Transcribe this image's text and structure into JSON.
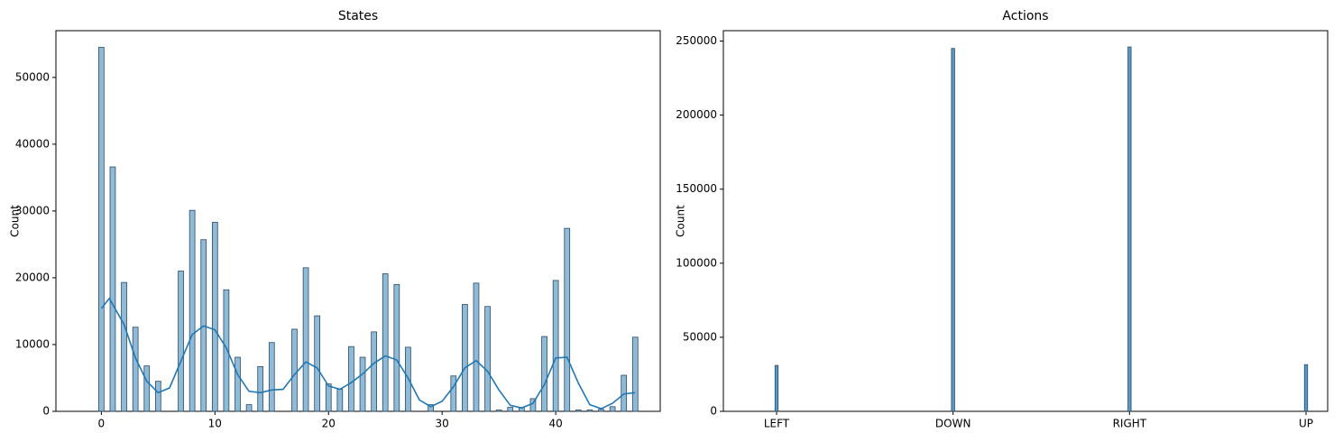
{
  "chart_data": [
    {
      "type": "bar",
      "title": "States",
      "y_label": "Count",
      "color": "#1f77b4",
      "x": [
        0,
        1,
        2,
        3,
        4,
        5,
        7,
        8,
        9,
        10,
        11,
        12,
        13,
        14,
        15,
        17,
        18,
        19,
        20,
        21,
        22,
        23,
        24,
        25,
        26,
        27,
        29,
        31,
        32,
        33,
        34,
        35,
        36,
        37,
        38,
        39,
        40,
        41,
        42,
        43,
        44,
        45,
        46,
        47
      ],
      "values": [
        54500,
        36600,
        19300,
        12600,
        6800,
        4500,
        21000,
        30100,
        25700,
        28300,
        18200,
        8100,
        1000,
        6700,
        10300,
        12300,
        21500,
        14300,
        4100,
        3300,
        9700,
        8100,
        11900,
        20600,
        19000,
        9600,
        1000,
        5300,
        16000,
        19200,
        15700,
        200,
        600,
        600,
        1900,
        11200,
        19600,
        27400,
        200,
        200,
        300,
        700,
        5400,
        11100
      ],
      "line": {
        "color": "#1f77b4",
        "x": [
          0,
          0.7,
          2,
          3,
          4,
          5,
          6,
          7,
          8,
          9,
          10,
          11,
          12,
          13,
          14,
          15,
          16,
          17,
          18,
          19,
          20,
          21,
          22,
          23,
          24,
          25,
          26,
          27,
          28,
          29,
          30,
          31,
          32,
          33,
          34,
          35,
          36,
          37,
          38,
          39,
          40,
          41,
          42,
          43,
          44,
          45,
          46,
          47
        ],
        "values": [
          15400,
          16900,
          13000,
          8000,
          4500,
          2800,
          3500,
          7500,
          11500,
          12800,
          12200,
          9500,
          5500,
          3000,
          2800,
          3200,
          3300,
          5500,
          7400,
          6500,
          3800,
          3300,
          4300,
          5600,
          7200,
          8300,
          7700,
          5000,
          1700,
          700,
          1500,
          3700,
          6500,
          7600,
          6000,
          3200,
          900,
          500,
          1200,
          4000,
          8000,
          8100,
          4200,
          1000,
          400,
          1200,
          2600,
          2800
        ]
      },
      "xlim": [
        -4,
        49.2
      ],
      "ylim": [
        0,
        57000
      ],
      "xticks": [
        0,
        10,
        20,
        30,
        40
      ],
      "yticks": [
        0,
        10000,
        20000,
        30000,
        40000,
        50000
      ]
    },
    {
      "type": "bar",
      "title": "Actions",
      "y_label": "Count",
      "color": "#1f77b4",
      "categories": [
        "LEFT",
        "DOWN",
        "RIGHT",
        "UP"
      ],
      "values": [
        31000,
        245000,
        246000,
        31500
      ],
      "ylim": [
        0,
        257000
      ],
      "yticks": [
        0,
        50000,
        100000,
        150000,
        200000,
        250000
      ]
    }
  ]
}
